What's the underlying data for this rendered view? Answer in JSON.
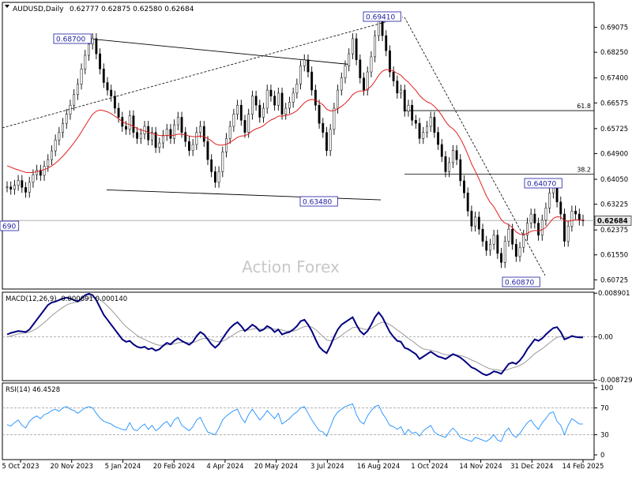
{
  "chart_data": {
    "type": "candlestick",
    "symbol_label": "AUDUSD,Daily",
    "ohlc_label": "0.62777 0.62875 0.62580 0.62684",
    "watermark": "Action Forex",
    "price_axis": {
      "range": [
        0.6042,
        0.699
      ],
      "ticks": [
        "0.69075",
        "0.68250",
        "0.67400",
        "0.66575",
        "0.65725",
        "0.64900",
        "0.64050",
        "0.63225",
        "0.62375",
        "0.61550",
        "0.60725"
      ],
      "current_price": "0.62684",
      "current_price_value": 0.62684
    },
    "x_axis": {
      "labels": [
        "5 Oct 2023",
        "20 Nov 2023",
        "5 Jan 2024",
        "20 Feb 2024",
        "4 Apr 2024",
        "20 May 2024",
        "3 Jul 2024",
        "16 Aug 2024",
        "1 Oct 2024",
        "14 Nov 2024",
        "31 Dec 2024",
        "14 Feb 2025"
      ]
    },
    "price_series": {
      "close": [
        0.638,
        0.6372,
        0.6385,
        0.6401,
        0.6378,
        0.6362,
        0.6395,
        0.642,
        0.6435,
        0.6418,
        0.6448,
        0.647,
        0.6499,
        0.6535,
        0.656,
        0.659,
        0.662,
        0.665,
        0.6685,
        0.672,
        0.677,
        0.6815,
        0.6852,
        0.687,
        0.682,
        0.677,
        0.6725,
        0.67,
        0.668,
        0.664,
        0.661,
        0.658,
        0.657,
        0.6615,
        0.656,
        0.654,
        0.6555,
        0.658,
        0.6535,
        0.656,
        0.651,
        0.6525,
        0.655,
        0.657,
        0.654,
        0.6585,
        0.661,
        0.656,
        0.653,
        0.65,
        0.652,
        0.656,
        0.658,
        0.653,
        0.647,
        0.643,
        0.6395,
        0.643,
        0.6495,
        0.654,
        0.658,
        0.662,
        0.665,
        0.66,
        0.656,
        0.662,
        0.668,
        0.665,
        0.661,
        0.664,
        0.67,
        0.668,
        0.665,
        0.669,
        0.662,
        0.664,
        0.666,
        0.669,
        0.672,
        0.678,
        0.68,
        0.676,
        0.67,
        0.665,
        0.659,
        0.656,
        0.65,
        0.657,
        0.664,
        0.67,
        0.674,
        0.678,
        0.682,
        0.687,
        0.68,
        0.674,
        0.67,
        0.676,
        0.681,
        0.688,
        0.693,
        0.688,
        0.683,
        0.676,
        0.673,
        0.669,
        0.67,
        0.663,
        0.665,
        0.66,
        0.659,
        0.654,
        0.656,
        0.658,
        0.661,
        0.656,
        0.652,
        0.648,
        0.643,
        0.646,
        0.65,
        0.647,
        0.64,
        0.636,
        0.63,
        0.625,
        0.628,
        0.624,
        0.62,
        0.617,
        0.619,
        0.622,
        0.616,
        0.613,
        0.62,
        0.624,
        0.619,
        0.615,
        0.618,
        0.622,
        0.626,
        0.629,
        0.626,
        0.622,
        0.627,
        0.631,
        0.636,
        0.638,
        0.633,
        0.629,
        0.62,
        0.625,
        0.63,
        0.629,
        0.627,
        0.6268
      ],
      "ma": [
        0.645,
        0.6445,
        0.644,
        0.6436,
        0.6432,
        0.6428,
        0.6427,
        0.6428,
        0.643,
        0.6433,
        0.6437,
        0.6442,
        0.6449,
        0.6458,
        0.6469,
        0.6481,
        0.6495,
        0.651,
        0.6526,
        0.6543,
        0.6562,
        0.6582,
        0.6602,
        0.662,
        0.663,
        0.6634,
        0.6632,
        0.6628,
        0.6622,
        0.6614,
        0.6605,
        0.6596,
        0.6589,
        0.6586,
        0.658,
        0.6573,
        0.6568,
        0.6565,
        0.656,
        0.6557,
        0.6553,
        0.655,
        0.6549,
        0.655,
        0.6549,
        0.6551,
        0.6554,
        0.6554,
        0.6552,
        0.6548,
        0.6546,
        0.6546,
        0.6548,
        0.6546,
        0.654,
        0.6532,
        0.6522,
        0.6518,
        0.6518,
        0.6521,
        0.6527,
        0.6535,
        0.6544,
        0.6548,
        0.6549,
        0.6555,
        0.6565,
        0.6572,
        0.6576,
        0.6582,
        0.6593,
        0.6601,
        0.6606,
        0.6614,
        0.6614,
        0.6616,
        0.6619,
        0.6624,
        0.6632,
        0.6645,
        0.6658,
        0.6666,
        0.6669,
        0.6667,
        0.666,
        0.6651,
        0.6637,
        0.6631,
        0.6632,
        0.6638,
        0.6646,
        0.6656,
        0.6669,
        0.6685,
        0.6693,
        0.6697,
        0.6697,
        0.6703,
        0.6713,
        0.6729,
        0.6749,
        0.6762,
        0.6768,
        0.6767,
        0.6763,
        0.6755,
        0.6749,
        0.6736,
        0.6726,
        0.6712,
        0.6699,
        0.6682,
        0.667,
        0.6661,
        0.6656,
        0.6646,
        0.6633,
        0.6616,
        0.6596,
        0.6581,
        0.6572,
        0.6559,
        0.6539,
        0.6515,
        0.6487,
        0.6456,
        0.6432,
        0.6406,
        0.6378,
        0.635,
        0.6329,
        0.6314,
        0.6293,
        0.6271,
        0.626,
        0.6255,
        0.6245,
        0.6231,
        0.6223,
        0.6222,
        0.6226,
        0.6233,
        0.6236,
        0.6234,
        0.6238,
        0.6246,
        0.6261,
        0.6276,
        0.6281,
        0.628,
        0.6268,
        0.6266,
        0.6269,
        0.6271,
        0.6271,
        0.627
      ]
    },
    "annotations": {
      "high_1": "0.68700",
      "low_1": "0.63480",
      "high_2": "0.69410",
      "recent_high": "0.64070",
      "low_2": "0.60870",
      "left_cut_label": "690",
      "fib_levels": [
        {
          "label": "61.8",
          "value": 0.6632
        },
        {
          "label": "38.2",
          "value": 0.6422
        }
      ]
    },
    "macd": {
      "label": "MACD(12,26,9) -0.000091 0.000140",
      "ticks": [
        "0.008901",
        "0.00",
        "-0.008729"
      ],
      "range": [
        -0.0089,
        0.0091
      ],
      "main": [
        0.0005,
        0.0008,
        0.001,
        0.0012,
        0.0011,
        0.001,
        0.0015,
        0.0025,
        0.0035,
        0.0045,
        0.0055,
        0.0065,
        0.007,
        0.0072,
        0.0075,
        0.0078,
        0.008,
        0.0078,
        0.0075,
        0.0072,
        0.0078,
        0.0085,
        0.0088,
        0.0085,
        0.0075,
        0.006,
        0.0045,
        0.0035,
        0.0025,
        0.0015,
        0.0005,
        -0.0005,
        -0.001,
        -0.0008,
        -0.0015,
        -0.002,
        -0.0022,
        -0.002,
        -0.0025,
        -0.0023,
        -0.0028,
        -0.0025,
        -0.0018,
        -0.0012,
        -0.0015,
        -0.0008,
        -0.0003,
        -0.0008,
        -0.0012,
        -0.0016,
        -0.001,
        0.0002,
        0.001,
        0.0005,
        -0.0005,
        -0.0015,
        -0.0022,
        -0.0015,
        -0.0003,
        0.0008,
        0.0018,
        0.0025,
        0.003,
        0.0022,
        0.0012,
        0.0018,
        0.0025,
        0.002,
        0.0012,
        0.0015,
        0.0022,
        0.0018,
        0.001,
        0.0015,
        0.0005,
        0.0008,
        0.001,
        0.0015,
        0.0022,
        0.0032,
        0.0035,
        0.0025,
        0.0012,
        -0.0005,
        -0.002,
        -0.0028,
        -0.0033,
        -0.0018,
        0.0,
        0.0015,
        0.0025,
        0.003,
        0.0035,
        0.004,
        0.0025,
        0.0012,
        0.0005,
        0.0012,
        0.0025,
        0.004,
        0.005,
        0.004,
        0.0025,
        0.001,
        0.0,
        -0.0008,
        -0.001,
        -0.0022,
        -0.0025,
        -0.003,
        -0.0035,
        -0.0045,
        -0.004,
        -0.0035,
        -0.003,
        -0.0035,
        -0.004,
        -0.0042,
        -0.0045,
        -0.004,
        -0.0035,
        -0.0038,
        -0.0042,
        -0.0048,
        -0.0055,
        -0.0062,
        -0.0065,
        -0.007,
        -0.0075,
        -0.0078,
        -0.0075,
        -0.007,
        -0.0072,
        -0.0075,
        -0.0065,
        -0.0055,
        -0.0052,
        -0.0055,
        -0.0048,
        -0.0038,
        -0.0025,
        -0.0015,
        -0.0005,
        -0.0008,
        -0.0003,
        0.0005,
        0.0012,
        0.0018,
        0.002,
        0.001,
        -0.0005,
        -0.0002,
        0.0002,
        0.0,
        -0.0001,
        -0.0001
      ],
      "signal": [
        0.0,
        0.0002,
        0.0004,
        0.0006,
        0.0007,
        0.0008,
        0.001,
        0.0013,
        0.0017,
        0.0023,
        0.0029,
        0.0036,
        0.0043,
        0.0049,
        0.0055,
        0.006,
        0.0065,
        0.0068,
        0.007,
        0.0071,
        0.0073,
        0.0076,
        0.0079,
        0.0081,
        0.008,
        0.0076,
        0.007,
        0.0063,
        0.0055,
        0.0047,
        0.0038,
        0.0029,
        0.0021,
        0.0015,
        0.0009,
        0.0003,
        -0.0002,
        -0.0005,
        -0.0009,
        -0.0012,
        -0.0015,
        -0.0017,
        -0.0017,
        -0.0016,
        -0.0016,
        -0.0014,
        -0.0012,
        -0.0011,
        -0.0011,
        -0.0012,
        -0.0011,
        -0.0009,
        -0.0005,
        -0.0003,
        -0.0003,
        -0.0006,
        -0.0009,
        -0.001,
        -0.0009,
        -0.0005,
        0.0,
        0.0005,
        0.001,
        0.0013,
        0.0013,
        0.0014,
        0.0016,
        0.0017,
        0.0016,
        0.0016,
        0.0017,
        0.0017,
        0.0016,
        0.0016,
        0.0014,
        0.0012,
        0.0012,
        0.0012,
        0.0014,
        0.0018,
        0.0021,
        0.0022,
        0.002,
        0.0015,
        0.0008,
        0.0001,
        -0.0006,
        -0.0008,
        -0.0006,
        -0.0002,
        0.0003,
        0.0009,
        0.0014,
        0.0019,
        0.002,
        0.0018,
        0.0016,
        0.0015,
        0.0017,
        0.0022,
        0.0027,
        0.003,
        0.0029,
        0.0025,
        0.002,
        0.0014,
        0.0009,
        0.0003,
        -0.0003,
        -0.0008,
        -0.0014,
        -0.002,
        -0.0024,
        -0.0026,
        -0.0027,
        -0.0029,
        -0.0031,
        -0.0034,
        -0.0036,
        -0.0037,
        -0.0036,
        -0.0037,
        -0.0038,
        -0.004,
        -0.0043,
        -0.0047,
        -0.005,
        -0.0054,
        -0.0058,
        -0.0062,
        -0.0065,
        -0.0066,
        -0.0067,
        -0.0069,
        -0.0068,
        -0.0066,
        -0.0063,
        -0.0061,
        -0.0058,
        -0.0054,
        -0.0048,
        -0.0041,
        -0.0034,
        -0.0029,
        -0.0024,
        -0.0018,
        -0.0012,
        -0.0006,
        -0.0001,
        0.0001,
        0.0,
        0.0,
        0.0,
        0.0,
        0.0001,
        0.0001
      ]
    },
    "rsi": {
      "label": "RSI(14) 46.4528",
      "ticks": [
        "100",
        "70",
        "30",
        "0"
      ],
      "levels": [
        70,
        30
      ],
      "range": [
        0,
        100
      ],
      "values": [
        45,
        43,
        48,
        52,
        44,
        40,
        50,
        55,
        58,
        54,
        60,
        62,
        66,
        68,
        65,
        70,
        72,
        68,
        66,
        62,
        66,
        70,
        72,
        70,
        62,
        55,
        50,
        48,
        46,
        42,
        40,
        38,
        37,
        48,
        38,
        36,
        42,
        46,
        38,
        44,
        36,
        40,
        46,
        50,
        42,
        52,
        56,
        44,
        40,
        36,
        42,
        52,
        56,
        44,
        34,
        32,
        30,
        40,
        52,
        58,
        62,
        66,
        68,
        56,
        48,
        60,
        68,
        60,
        52,
        58,
        66,
        60,
        54,
        62,
        46,
        50,
        54,
        60,
        64,
        70,
        72,
        62,
        52,
        44,
        36,
        34,
        28,
        42,
        56,
        64,
        68,
        72,
        74,
        76,
        60,
        50,
        46,
        58,
        66,
        72,
        74,
        62,
        54,
        44,
        42,
        38,
        42,
        30,
        38,
        32,
        34,
        28,
        36,
        40,
        44,
        34,
        30,
        28,
        26,
        34,
        40,
        34,
        26,
        24,
        22,
        20,
        26,
        24,
        22,
        20,
        24,
        30,
        22,
        20,
        34,
        40,
        30,
        26,
        32,
        40,
        48,
        52,
        44,
        38,
        48,
        54,
        62,
        64,
        50,
        44,
        30,
        44,
        54,
        50,
        46,
        46
      ]
    }
  }
}
